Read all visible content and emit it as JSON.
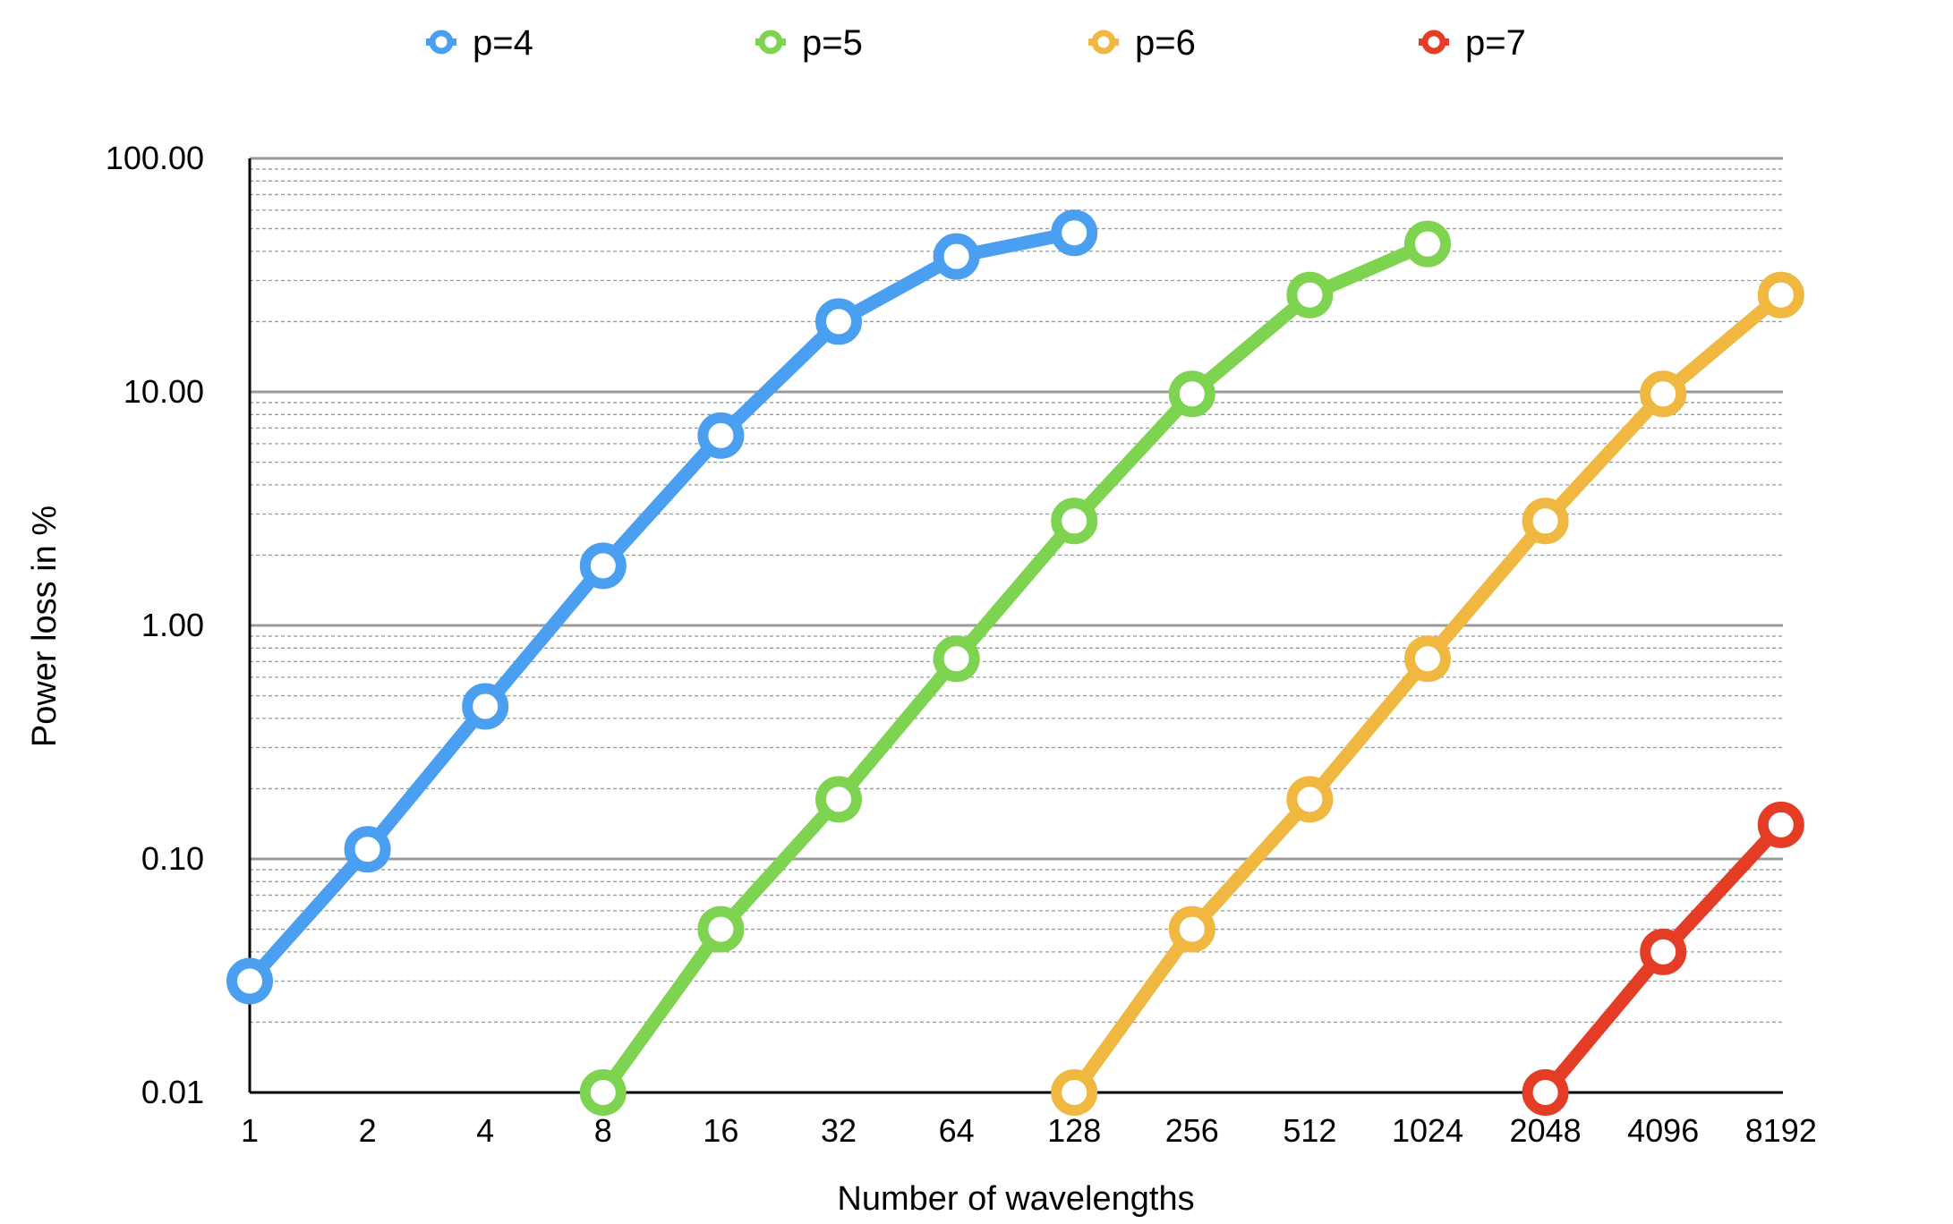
{
  "chart_data": {
    "type": "line",
    "title": "",
    "xlabel": "Number of wavelengths",
    "ylabel": "Power loss in %",
    "yscale": "log",
    "ylim": [
      0.01,
      100
    ],
    "grid": true,
    "legend_position": "top",
    "categories": [
      "1",
      "2",
      "4",
      "8",
      "16",
      "32",
      "64",
      "128",
      "256",
      "512",
      "1024",
      "2048",
      "4096",
      "8192"
    ],
    "y_ticks": [
      "0.01",
      "0.10",
      "1.00",
      "10.00",
      "100.00"
    ],
    "series": [
      {
        "name": "p=4",
        "color": "#4a9ff0",
        "x": [
          "1",
          "2",
          "4",
          "8",
          "16",
          "32",
          "64",
          "128"
        ],
        "values": [
          0.03,
          0.11,
          0.45,
          1.8,
          6.5,
          20,
          38,
          48
        ]
      },
      {
        "name": "p=5",
        "color": "#7ed350",
        "x": [
          "8",
          "16",
          "32",
          "64",
          "128",
          "256",
          "512",
          "1024"
        ],
        "values": [
          0.01,
          0.05,
          0.18,
          0.72,
          2.8,
          9.8,
          26,
          43
        ]
      },
      {
        "name": "p=6",
        "color": "#f0b840",
        "x": [
          "128",
          "256",
          "512",
          "1024",
          "2048",
          "4096",
          "8192"
        ],
        "values": [
          0.01,
          0.05,
          0.18,
          0.72,
          2.8,
          9.8,
          26
        ]
      },
      {
        "name": "p=7",
        "color": "#e53c25",
        "x": [
          "2048",
          "4096",
          "8192"
        ],
        "values": [
          0.01,
          0.04,
          0.14
        ]
      }
    ]
  }
}
